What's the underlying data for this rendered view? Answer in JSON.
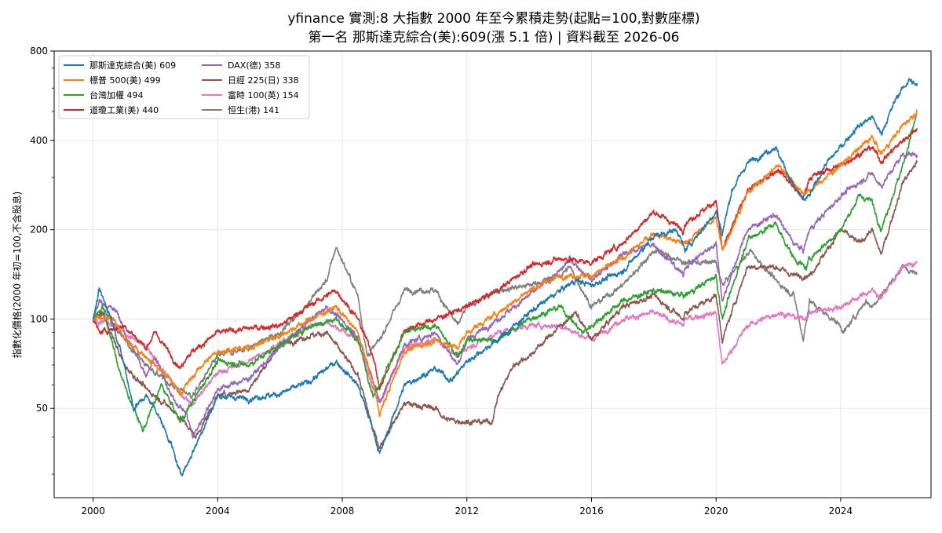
{
  "chart_data": {
    "type": "line",
    "title": "yfinance 實測:8 大指數 2000 年至今累積走勢(起點=100,對數座標)",
    "subtitle": "第一名 那斯達克綜合(美):609(漲 5.1 倍) | 資料截至 2026-06",
    "xlabel": "",
    "ylabel": "指數化價格(2000 年初=100,不含股息)",
    "y_scale": "log",
    "ylim": [
      25,
      800
    ],
    "xlim": [
      1998.75,
      2026.9
    ],
    "x_ticks": [
      2000,
      2004,
      2008,
      2012,
      2016,
      2020,
      2024
    ],
    "x_tick_labels": [
      "2000",
      "2004",
      "2008",
      "2012",
      "2016",
      "2020",
      "2024"
    ],
    "y_ticks": [
      50,
      100,
      200,
      400,
      800
    ],
    "y_tick_labels": [
      "50",
      "100",
      "200",
      "400",
      "800"
    ],
    "grid": true,
    "legend_position": "top-left",
    "legend_columns": 2,
    "series": [
      {
        "name": "那斯達克綜合(美) 609",
        "color": "#1f77b4",
        "x": [
          2000.0,
          2000.2,
          2000.6,
          2001.0,
          2001.3,
          2001.7,
          2002.0,
          2002.5,
          2002.8,
          2003.0,
          2003.5,
          2004.0,
          2005.0,
          2006.0,
          2007.0,
          2007.8,
          2008.5,
          2009.0,
          2009.2,
          2010.0,
          2011.0,
          2011.5,
          2012.0,
          2013.0,
          2014.0,
          2015.0,
          2015.5,
          2016.0,
          2017.0,
          2018.0,
          2018.75,
          2019.0,
          2020.0,
          2020.2,
          2020.5,
          2021.0,
          2021.9,
          2022.5,
          2022.8,
          2023.0,
          2023.5,
          2024.0,
          2024.5,
          2025.0,
          2025.3,
          2025.8,
          2026.2,
          2026.45
        ],
        "y": [
          100,
          125,
          100,
          70,
          50,
          55,
          50,
          38,
          30,
          32,
          42,
          55,
          54,
          56,
          62,
          72,
          60,
          42,
          35,
          60,
          68,
          62,
          72,
          85,
          105,
          125,
          135,
          130,
          145,
          190,
          200,
          170,
          230,
          195,
          270,
          335,
          380,
          280,
          250,
          260,
          330,
          380,
          440,
          480,
          420,
          560,
          640,
          609
        ]
      },
      {
        "name": "標普 500(美) 499",
        "color": "#ff7f0e",
        "x": [
          2000.0,
          2000.7,
          2001.0,
          2001.7,
          2002.5,
          2002.8,
          2003.0,
          2003.5,
          2004.0,
          2005.0,
          2006.0,
          2007.0,
          2007.8,
          2008.5,
          2009.0,
          2009.2,
          2010.0,
          2011.0,
          2011.7,
          2012.0,
          2013.0,
          2014.0,
          2015.0,
          2016.0,
          2017.0,
          2018.0,
          2018.9,
          2019.0,
          2020.0,
          2020.2,
          2021.0,
          2022.0,
          2022.8,
          2023.0,
          2024.0,
          2025.0,
          2025.3,
          2026.0,
          2026.45
        ],
        "y": [
          100,
          100,
          85,
          75,
          62,
          56,
          60,
          70,
          78,
          80,
          88,
          100,
          110,
          90,
          60,
          48,
          78,
          85,
          80,
          90,
          105,
          125,
          140,
          140,
          160,
          195,
          180,
          180,
          220,
          170,
          265,
          330,
          265,
          270,
          330,
          410,
          360,
          450,
          499
        ]
      },
      {
        "name": "台灣加權 494",
        "color": "#2ca02c",
        "x": [
          2000.0,
          2000.3,
          2000.8,
          2001.0,
          2001.6,
          2002.2,
          2002.8,
          2003.3,
          2004.0,
          2005.0,
          2006.0,
          2007.0,
          2007.8,
          2008.5,
          2009.0,
          2010.0,
          2011.0,
          2011.7,
          2012.0,
          2013.0,
          2014.0,
          2015.0,
          2015.7,
          2016.0,
          2017.0,
          2018.0,
          2019.0,
          2020.0,
          2020.2,
          2021.0,
          2021.9,
          2022.5,
          2022.9,
          2023.0,
          2024.0,
          2024.6,
          2025.0,
          2025.3,
          2026.0,
          2026.45
        ],
        "y": [
          100,
          110,
          70,
          60,
          42,
          60,
          45,
          55,
          72,
          70,
          82,
          95,
          100,
          85,
          55,
          90,
          95,
          75,
          85,
          85,
          100,
          110,
          90,
          95,
          115,
          125,
          120,
          140,
          100,
          185,
          210,
          160,
          148,
          160,
          200,
          260,
          250,
          200,
          330,
          494
        ]
      },
      {
        "name": "道瓊工業(美) 440",
        "color": "#d62728",
        "x": [
          2000.0,
          2000.2,
          2001.0,
          2001.7,
          2002.0,
          2002.8,
          2003.0,
          2004.0,
          2005.0,
          2006.0,
          2007.0,
          2007.8,
          2008.5,
          2009.0,
          2009.2,
          2010.0,
          2011.0,
          2012.0,
          2013.0,
          2014.0,
          2015.0,
          2016.0,
          2017.0,
          2018.0,
          2018.95,
          2019.0,
          2020.0,
          2020.2,
          2021.0,
          2022.0,
          2022.8,
          2023.0,
          2024.0,
          2025.0,
          2025.3,
          2026.0,
          2026.45
        ],
        "y": [
          100,
          90,
          95,
          80,
          90,
          68,
          75,
          90,
          93,
          95,
          112,
          125,
          100,
          75,
          58,
          92,
          100,
          110,
          125,
          150,
          160,
          155,
          180,
          230,
          200,
          210,
          250,
          170,
          270,
          320,
          255,
          300,
          330,
          380,
          340,
          400,
          440
        ]
      },
      {
        "name": "DAX(德) 358",
        "color": "#9467bd",
        "x": [
          2000.0,
          2000.2,
          2000.8,
          2001.0,
          2001.7,
          2002.0,
          2002.5,
          2003.0,
          2003.2,
          2004.0,
          2005.0,
          2006.0,
          2007.0,
          2007.5,
          2008.5,
          2009.0,
          2009.2,
          2010.0,
          2011.0,
          2011.7,
          2012.0,
          2013.0,
          2014.0,
          2015.0,
          2015.3,
          2016.0,
          2017.0,
          2018.0,
          2018.95,
          2019.0,
          2020.0,
          2020.2,
          2021.0,
          2021.9,
          2022.5,
          2022.8,
          2023.0,
          2024.0,
          2025.0,
          2025.3,
          2026.0,
          2026.45
        ],
        "y": [
          100,
          115,
          105,
          90,
          65,
          75,
          55,
          48,
          40,
          58,
          63,
          80,
          100,
          110,
          88,
          62,
          52,
          82,
          90,
          70,
          85,
          100,
          120,
          145,
          160,
          135,
          165,
          180,
          140,
          150,
          180,
          115,
          200,
          225,
          180,
          170,
          200,
          260,
          310,
          280,
          360,
          358
        ]
      },
      {
        "name": "日經 225(日) 338",
        "color": "#8c564b",
        "x": [
          2000.0,
          2000.3,
          2001.0,
          2001.7,
          2002.0,
          2002.5,
          2003.0,
          2003.3,
          2004.0,
          2005.0,
          2006.0,
          2007.0,
          2007.5,
          2008.5,
          2009.0,
          2009.2,
          2010.0,
          2011.0,
          2011.3,
          2012.0,
          2012.8,
          2013.0,
          2013.5,
          2014.0,
          2015.0,
          2015.5,
          2016.0,
          2017.0,
          2018.0,
          2018.95,
          2019.0,
          2020.0,
          2020.2,
          2021.0,
          2021.9,
          2022.5,
          2023.0,
          2024.0,
          2024.6,
          2025.0,
          2025.3,
          2026.0,
          2026.45
        ],
        "y": [
          100,
          105,
          70,
          58,
          55,
          50,
          44,
          40,
          55,
          58,
          82,
          88,
          90,
          65,
          42,
          37,
          52,
          50,
          46,
          45,
          45,
          55,
          70,
          75,
          95,
          105,
          85,
          110,
          120,
          100,
          105,
          120,
          85,
          150,
          150,
          140,
          140,
          200,
          180,
          200,
          165,
          290,
          338
        ]
      },
      {
        "name": "富時 100(英) 154",
        "color": "#e377c2",
        "x": [
          2000.0,
          2000.5,
          2001.0,
          2001.7,
          2002.5,
          2002.8,
          2003.2,
          2004.0,
          2005.0,
          2006.0,
          2007.0,
          2007.5,
          2008.5,
          2009.0,
          2009.2,
          2010.0,
          2011.0,
          2011.7,
          2012.0,
          2013.0,
          2014.0,
          2015.0,
          2016.0,
          2017.0,
          2018.0,
          2018.95,
          2019.0,
          2020.0,
          2020.2,
          2021.0,
          2022.0,
          2022.8,
          2023.0,
          2024.0,
          2025.0,
          2025.3,
          2026.0,
          2026.45
        ],
        "y": [
          100,
          98,
          90,
          80,
          62,
          56,
          52,
          66,
          72,
          83,
          95,
          98,
          85,
          58,
          52,
          80,
          85,
          75,
          80,
          90,
          95,
          95,
          85,
          100,
          105,
          95,
          100,
          105,
          70,
          95,
          105,
          100,
          105,
          110,
          125,
          118,
          150,
          154
        ]
      },
      {
        "name": "恒生(港) 141",
        "color": "#7f7f7f",
        "x": [
          2000.0,
          2000.4,
          2001.0,
          2001.7,
          2002.5,
          2003.2,
          2004.0,
          2005.0,
          2006.0,
          2006.8,
          2007.5,
          2007.8,
          2008.5,
          2008.8,
          2009.2,
          2010.0,
          2011.0,
          2011.7,
          2012.0,
          2013.0,
          2014.0,
          2015.0,
          2015.3,
          2016.0,
          2017.0,
          2018.0,
          2019.0,
          2020.0,
          2020.2,
          2021.1,
          2021.9,
          2022.5,
          2022.8,
          2023.0,
          2024.0,
          2024.1,
          2024.8,
          2025.0,
          2026.0,
          2026.45
        ],
        "y": [
          100,
          105,
          85,
          70,
          60,
          55,
          75,
          80,
          90,
          110,
          135,
          175,
          120,
          75,
          85,
          125,
          125,
          95,
          110,
          125,
          130,
          140,
          150,
          110,
          130,
          170,
          155,
          155,
          130,
          170,
          135,
          120,
          85,
          115,
          95,
          90,
          115,
          110,
          150,
          141
        ]
      }
    ]
  }
}
